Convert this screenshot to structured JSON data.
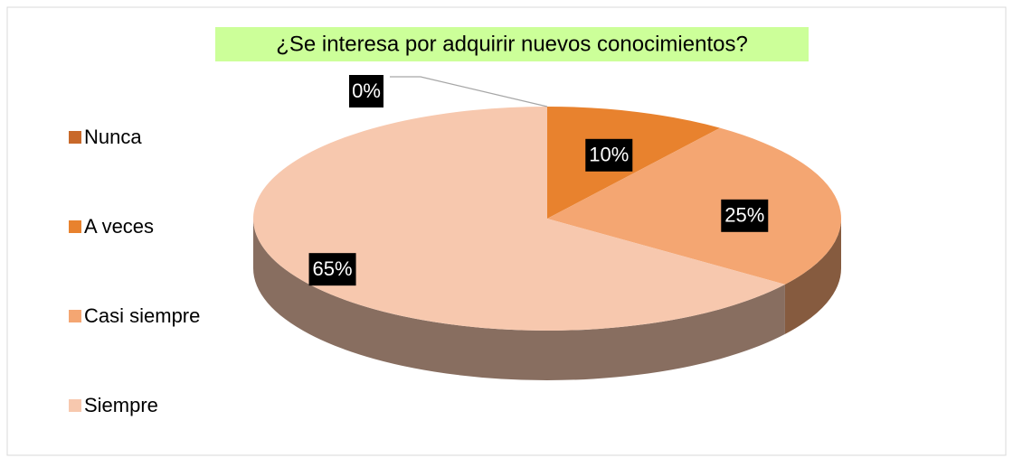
{
  "chart_data": {
    "type": "pie",
    "title": "¿Se interesa por adquirir nuevos conocimientos?",
    "categories": [
      "Nunca",
      "A veces",
      "Casi siempre",
      "Siempre"
    ],
    "values": [
      0,
      10,
      25,
      65
    ],
    "value_labels": [
      "0%",
      "10%",
      "25%",
      "65%"
    ],
    "colors": [
      "#c8692a",
      "#e8822e",
      "#f4a672",
      "#f7c8ae"
    ],
    "legend": "left"
  }
}
